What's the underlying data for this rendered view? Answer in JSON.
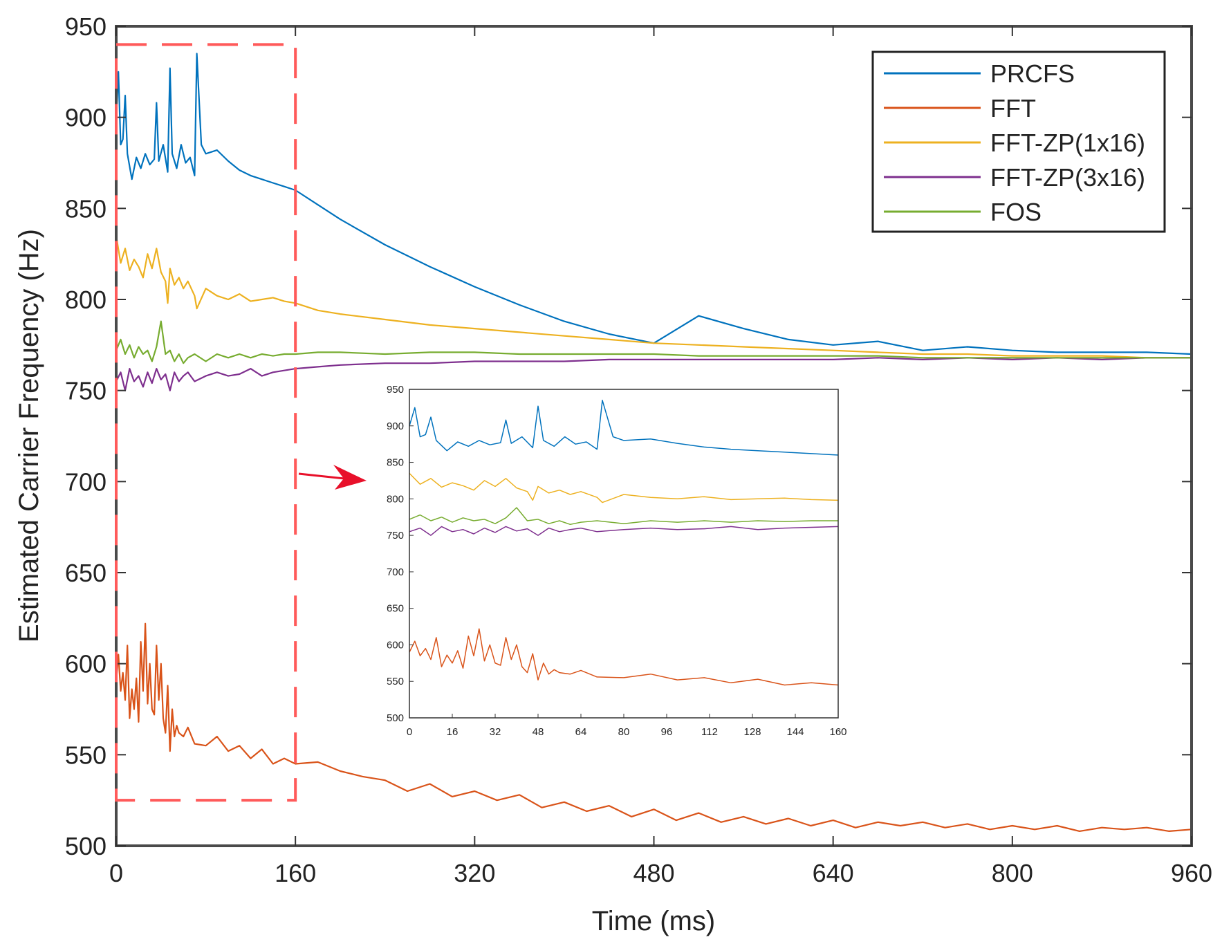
{
  "chart_data": {
    "type": "line",
    "title": "",
    "xlabel": "Time (ms)",
    "ylabel": "Estimated Carrier Frequency (Hz)",
    "xlim": [
      0,
      960
    ],
    "ylim": [
      500,
      950
    ],
    "xticks": [
      0,
      160,
      320,
      480,
      640,
      800,
      960
    ],
    "yticks": [
      500,
      550,
      600,
      650,
      700,
      750,
      800,
      850,
      900,
      950
    ],
    "legend_position": "top-right",
    "series": [
      {
        "name": "PRCFS",
        "color": "#0072BD",
        "x": [
          0,
          2,
          4,
          6,
          8,
          10,
          14,
          18,
          22,
          26,
          30,
          34,
          36,
          38,
          42,
          46,
          48,
          50,
          54,
          58,
          62,
          66,
          70,
          72,
          76,
          80,
          90,
          100,
          110,
          120,
          130,
          140,
          150,
          160,
          180,
          200,
          240,
          280,
          320,
          360,
          400,
          440,
          480,
          520,
          560,
          600,
          640,
          680,
          720,
          760,
          800,
          840,
          880,
          920,
          960
        ],
        "y": [
          900,
          925,
          885,
          888,
          912,
          880,
          866,
          878,
          872,
          880,
          874,
          877,
          908,
          876,
          885,
          870,
          927,
          880,
          872,
          885,
          875,
          878,
          868,
          935,
          885,
          880,
          882,
          876,
          871,
          868,
          866,
          864,
          862,
          860,
          852,
          844,
          830,
          818,
          807,
          797,
          788,
          781,
          776,
          791,
          784,
          778,
          775,
          777,
          772,
          774,
          772,
          771,
          771,
          771,
          770
        ]
      },
      {
        "name": "FFT",
        "color": "#D95319",
        "x": [
          0,
          2,
          4,
          6,
          8,
          10,
          12,
          14,
          16,
          18,
          20,
          22,
          24,
          26,
          28,
          30,
          32,
          34,
          36,
          38,
          40,
          42,
          44,
          46,
          48,
          50,
          52,
          54,
          56,
          60,
          64,
          70,
          80,
          90,
          100,
          110,
          120,
          130,
          140,
          150,
          160,
          180,
          200,
          220,
          240,
          260,
          280,
          300,
          320,
          340,
          360,
          380,
          400,
          420,
          440,
          460,
          480,
          500,
          520,
          540,
          560,
          580,
          600,
          620,
          640,
          660,
          680,
          700,
          720,
          740,
          760,
          780,
          800,
          820,
          840,
          860,
          880,
          900,
          920,
          940,
          960
        ],
        "y": [
          590,
          605,
          585,
          595,
          580,
          610,
          570,
          586,
          575,
          592,
          568,
          612,
          585,
          622,
          578,
          600,
          575,
          572,
          610,
          580,
          600,
          570,
          562,
          588,
          552,
          575,
          560,
          566,
          562,
          560,
          565,
          556,
          555,
          560,
          552,
          555,
          548,
          553,
          545,
          548,
          545,
          546,
          541,
          538,
          536,
          530,
          534,
          527,
          530,
          525,
          528,
          521,
          524,
          519,
          522,
          516,
          520,
          514,
          518,
          513,
          516,
          512,
          515,
          511,
          514,
          510,
          513,
          511,
          513,
          510,
          512,
          509,
          511,
          509,
          511,
          508,
          510,
          509,
          510,
          508,
          509
        ]
      },
      {
        "name": "FFT-ZP(1x16)",
        "color": "#EDB120",
        "x": [
          0,
          4,
          8,
          12,
          16,
          20,
          24,
          28,
          32,
          36,
          40,
          44,
          46,
          48,
          52,
          56,
          60,
          64,
          70,
          72,
          80,
          90,
          100,
          110,
          120,
          130,
          140,
          150,
          160,
          180,
          200,
          240,
          280,
          320,
          360,
          400,
          440,
          480,
          520,
          560,
          600,
          640,
          680,
          720,
          760,
          800,
          840,
          880,
          920,
          960
        ],
        "y": [
          835,
          820,
          828,
          816,
          822,
          818,
          812,
          825,
          817,
          828,
          815,
          810,
          798,
          817,
          808,
          812,
          806,
          810,
          802,
          795,
          806,
          802,
          800,
          803,
          799,
          800,
          801,
          799,
          798,
          794,
          792,
          789,
          786,
          784,
          782,
          780,
          778,
          776,
          775,
          774,
          773,
          772,
          771,
          770,
          770,
          769,
          769,
          769,
          768,
          768
        ]
      },
      {
        "name": "FFT-ZP(3x16)",
        "color": "#7E2F8E",
        "x": [
          0,
          4,
          8,
          12,
          16,
          20,
          24,
          28,
          32,
          36,
          40,
          44,
          48,
          52,
          56,
          60,
          64,
          70,
          80,
          90,
          100,
          110,
          120,
          130,
          140,
          150,
          160,
          180,
          200,
          240,
          280,
          320,
          360,
          400,
          440,
          480,
          520,
          560,
          600,
          640,
          680,
          720,
          760,
          800,
          840,
          880,
          920,
          960
        ],
        "y": [
          755,
          760,
          750,
          762,
          755,
          758,
          752,
          760,
          754,
          762,
          756,
          759,
          750,
          760,
          755,
          758,
          760,
          755,
          758,
          760,
          758,
          759,
          762,
          758,
          760,
          761,
          762,
          763,
          764,
          765,
          765,
          766,
          766,
          766,
          767,
          767,
          767,
          767,
          767,
          767,
          768,
          767,
          768,
          767,
          768,
          767,
          768,
          768
        ]
      },
      {
        "name": "FOS",
        "color": "#77AC30",
        "x": [
          0,
          4,
          8,
          12,
          16,
          20,
          24,
          28,
          32,
          36,
          40,
          44,
          48,
          52,
          56,
          60,
          64,
          70,
          80,
          90,
          100,
          110,
          120,
          130,
          140,
          150,
          160,
          180,
          200,
          240,
          280,
          320,
          360,
          400,
          440,
          480,
          520,
          560,
          600,
          640,
          680,
          720,
          760,
          800,
          840,
          880,
          920,
          960
        ],
        "y": [
          772,
          778,
          770,
          775,
          768,
          774,
          770,
          772,
          766,
          774,
          788,
          770,
          772,
          766,
          770,
          765,
          768,
          770,
          766,
          770,
          768,
          770,
          768,
          770,
          769,
          770,
          770,
          771,
          771,
          770,
          771,
          771,
          770,
          770,
          770,
          770,
          769,
          769,
          769,
          769,
          769,
          768,
          768,
          768,
          768,
          768,
          768,
          768
        ]
      }
    ],
    "inset": {
      "xlim": [
        0,
        160
      ],
      "ylim": [
        500,
        950
      ],
      "xticks": [
        0,
        16,
        32,
        48,
        64,
        80,
        96,
        112,
        128,
        144,
        160
      ],
      "yticks": [
        500,
        550,
        600,
        650,
        700,
        750,
        800,
        850,
        900,
        950
      ]
    },
    "zoom_box": {
      "x_range": [
        0,
        160
      ],
      "y_range": [
        525,
        940
      ]
    }
  }
}
